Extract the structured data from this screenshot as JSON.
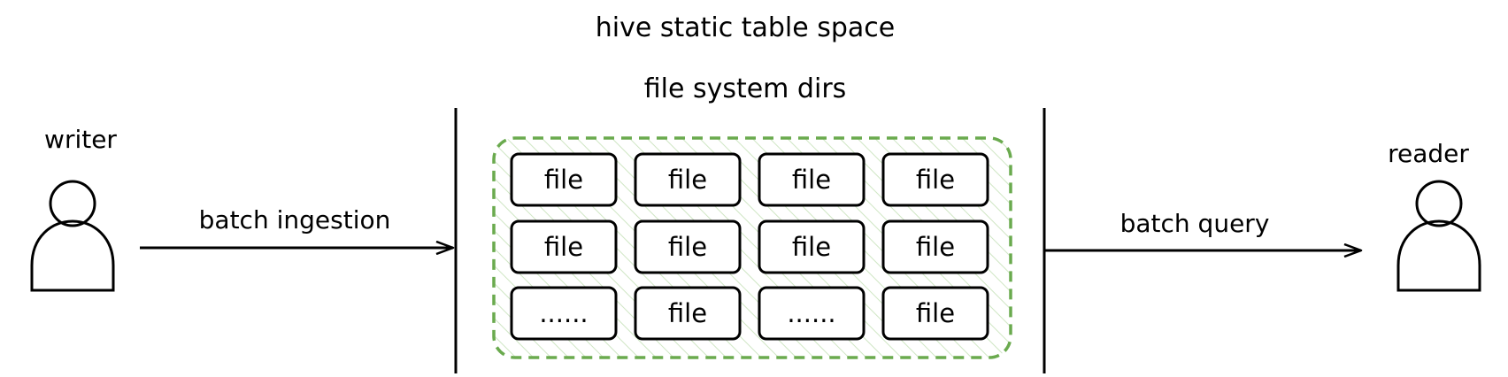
{
  "title": "hive static table space",
  "subtitle": "file system dirs",
  "writer": {
    "label": "writer"
  },
  "reader": {
    "label": "reader"
  },
  "ingest": {
    "label": "batch ingestion"
  },
  "query": {
    "label": "batch query"
  },
  "colors": {
    "stroke": "#000000",
    "container": "#6aaa4e",
    "hatch": "#cfe6c4"
  },
  "grid": {
    "cells": [
      "file",
      "file",
      "file",
      "file",
      "file",
      "file",
      "file",
      "file",
      "......",
      "file",
      "......",
      "file"
    ]
  }
}
